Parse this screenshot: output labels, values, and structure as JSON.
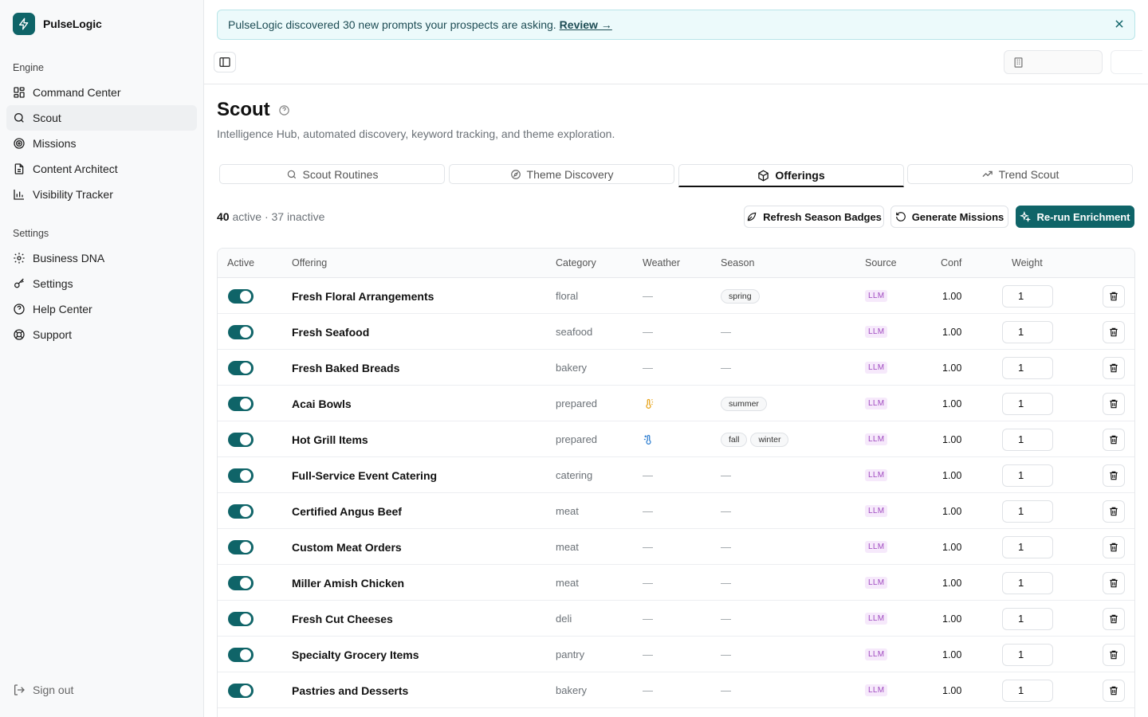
{
  "brand": {
    "name": "PulseLogic"
  },
  "sidebar": {
    "engine_label": "Engine",
    "engine_items": [
      {
        "label": "Command Center",
        "icon": "grid-icon"
      },
      {
        "label": "Scout",
        "icon": "search-icon",
        "active": true
      },
      {
        "label": "Missions",
        "icon": "target-icon"
      },
      {
        "label": "Content Architect",
        "icon": "document-icon"
      },
      {
        "label": "Visibility Tracker",
        "icon": "bar-chart-icon"
      }
    ],
    "settings_label": "Settings",
    "settings_items": [
      {
        "label": "Business DNA",
        "icon": "gear-icon"
      },
      {
        "label": "Settings",
        "icon": "key-icon"
      },
      {
        "label": "Help Center",
        "icon": "help-circle-icon"
      },
      {
        "label": "Support",
        "icon": "lifebuoy-icon"
      }
    ],
    "signout": "Sign out"
  },
  "banner": {
    "text": "PulseLogic discovered 30 new prompts your prospects are asking.",
    "link": "Review →"
  },
  "page": {
    "title": "Scout",
    "subtitle": "Intelligence Hub, automated discovery, keyword tracking, and theme exploration."
  },
  "tabs": [
    {
      "label": "Scout Routines",
      "icon": "search-icon"
    },
    {
      "label": "Theme Discovery",
      "icon": "compass-icon"
    },
    {
      "label": "Offerings",
      "icon": "box-icon",
      "active": true
    },
    {
      "label": "Trend Scout",
      "icon": "trending-up-icon"
    }
  ],
  "summary": {
    "active_count": "40",
    "active_label": "active",
    "separator": "·",
    "inactive": "37 inactive"
  },
  "actions": {
    "refresh": "Refresh Season Badges",
    "generate": "Generate Missions",
    "rerun": "Re-run Enrichment"
  },
  "table": {
    "headers": [
      "Active",
      "Offering",
      "Category",
      "Weather",
      "Season",
      "Source",
      "Conf",
      "Weight"
    ],
    "rows": [
      {
        "name": "Fresh Floral Arrangements",
        "category": "floral",
        "weather": "—",
        "seasons": [
          "spring"
        ],
        "source": "LLM",
        "conf": "1.00",
        "weight": "1"
      },
      {
        "name": "Fresh Seafood",
        "category": "seafood",
        "weather": "—",
        "seasons": [],
        "season_empty": "—",
        "source": "LLM",
        "conf": "1.00",
        "weight": "1"
      },
      {
        "name": "Fresh Baked Breads",
        "category": "bakery",
        "weather": "—",
        "seasons": [],
        "season_empty": "—",
        "source": "LLM",
        "conf": "1.00",
        "weight": "1"
      },
      {
        "name": "Acai Bowls",
        "category": "prepared",
        "weather_icon": "thermometer-sun-icon",
        "seasons": [
          "summer"
        ],
        "source": "LLM",
        "conf": "1.00",
        "weight": "1"
      },
      {
        "name": "Hot Grill Items",
        "category": "prepared",
        "weather_icon": "thermometer-snow-icon",
        "seasons": [
          "fall",
          "winter"
        ],
        "source": "LLM",
        "conf": "1.00",
        "weight": "1"
      },
      {
        "name": "Full-Service Event Catering",
        "category": "catering",
        "weather": "—",
        "seasons": [],
        "season_empty": "—",
        "source": "LLM",
        "conf": "1.00",
        "weight": "1"
      },
      {
        "name": "Certified Angus Beef",
        "category": "meat",
        "weather": "—",
        "seasons": [],
        "season_empty": "—",
        "source": "LLM",
        "conf": "1.00",
        "weight": "1"
      },
      {
        "name": "Custom Meat Orders",
        "category": "meat",
        "weather": "—",
        "seasons": [],
        "season_empty": "—",
        "source": "LLM",
        "conf": "1.00",
        "weight": "1"
      },
      {
        "name": "Miller Amish Chicken",
        "category": "meat",
        "weather": "—",
        "seasons": [],
        "season_empty": "—",
        "source": "LLM",
        "conf": "1.00",
        "weight": "1"
      },
      {
        "name": "Fresh Cut Cheeses",
        "category": "deli",
        "weather": "—",
        "seasons": [],
        "season_empty": "—",
        "source": "LLM",
        "conf": "1.00",
        "weight": "1"
      },
      {
        "name": "Specialty Grocery Items",
        "category": "pantry",
        "weather": "—",
        "seasons": [],
        "season_empty": "—",
        "source": "LLM",
        "conf": "1.00",
        "weight": "1"
      },
      {
        "name": "Pastries and Desserts",
        "category": "bakery",
        "weather": "—",
        "seasons": [],
        "season_empty": "—",
        "source": "LLM",
        "conf": "1.00",
        "weight": "1"
      }
    ]
  },
  "colors": {
    "accent": "#0f6468",
    "llm": "#a04bc0",
    "warm": "#e8a319",
    "cold": "#2f7fd1"
  }
}
